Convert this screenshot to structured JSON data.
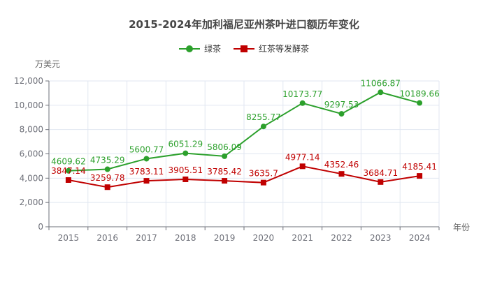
{
  "chart_data": {
    "type": "line",
    "title": "2015-2024年加利福尼亚州茶叶进口额历年变化",
    "xlabel": "年份",
    "ylabel": "万美元",
    "categories": [
      "2015",
      "2016",
      "2017",
      "2018",
      "2019",
      "2020",
      "2021",
      "2022",
      "2023",
      "2024"
    ],
    "ylim": [
      0,
      12000
    ],
    "yticks": [
      0,
      2000,
      4000,
      6000,
      8000,
      10000,
      12000
    ],
    "ytick_labels": [
      "0",
      "2,000",
      "4,000",
      "6,000",
      "8,000",
      "10,000",
      "12,000"
    ],
    "grid": true,
    "legend_position": "top-center",
    "series": [
      {
        "name": "绿茶",
        "color": "#2ca02c",
        "marker": "circle",
        "values": [
          4609.62,
          4735.29,
          5600.77,
          6051.29,
          5806.09,
          8255.77,
          10173.77,
          9297.53,
          11066.87,
          10189.66
        ]
      },
      {
        "name": "红茶等发酵茶",
        "color": "#c00000",
        "marker": "square",
        "values": [
          3847.14,
          3259.78,
          3783.11,
          3905.51,
          3785.42,
          3635.7,
          4977.14,
          4352.46,
          3684.71,
          4185.41
        ]
      }
    ]
  }
}
